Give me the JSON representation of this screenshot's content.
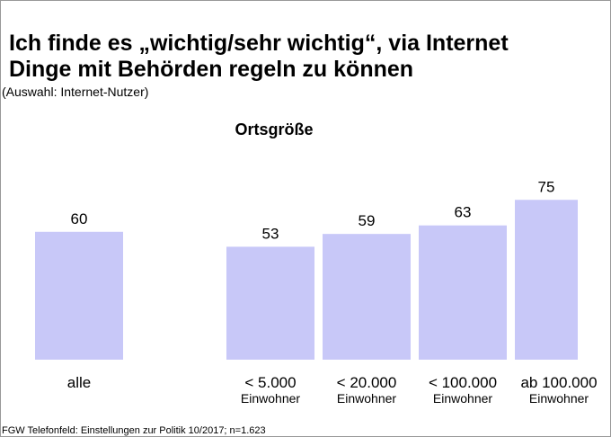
{
  "chart_data": {
    "type": "bar",
    "title": [
      "Ich finde es „wichtig/sehr wichtig“, via Internet",
      "Dinge mit Behörden regeln zu können"
    ],
    "subtitle": "(Auswahl: Internet-Nutzer)",
    "group_label": "Ortsgröße",
    "categories": [
      "alle",
      "< 5.000",
      "< 20.000",
      "< 100.000",
      "ab 100.000"
    ],
    "category_sublabels": [
      null,
      "Einwohner",
      "Einwohner",
      "Einwohner",
      "Einwohner"
    ],
    "values": [
      60,
      53,
      59,
      63,
      75
    ],
    "color": "#c8c8f8",
    "footnote": "FGW Telefonfeld: Einstellungen zur Politik 10/2017; n=1.623"
  }
}
